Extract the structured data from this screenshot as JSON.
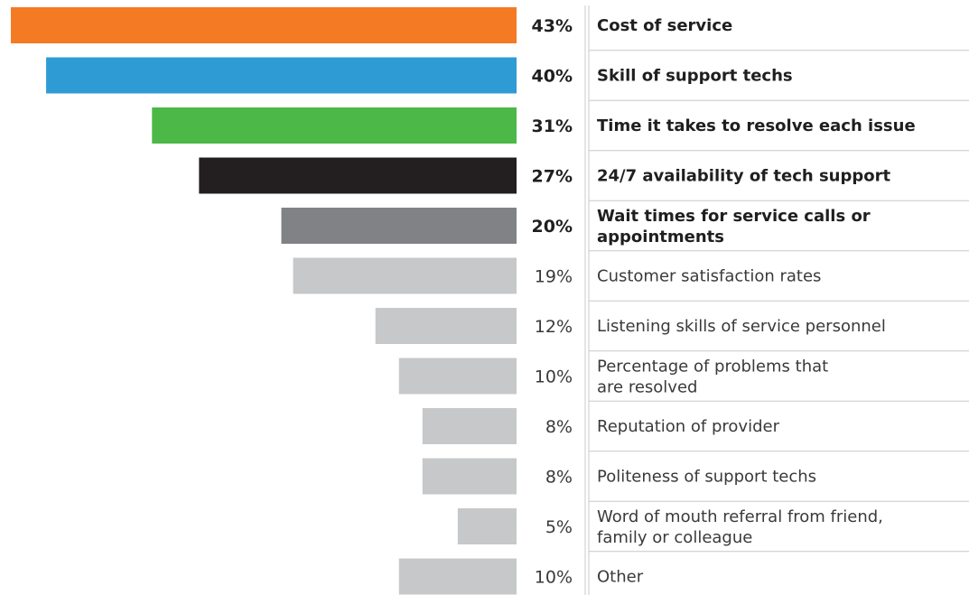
{
  "chart_data": {
    "type": "bar",
    "orientation": "horizontal",
    "xlim": [
      0,
      43
    ],
    "grid": false,
    "legend": "none",
    "categories": [
      [
        "Cost of service"
      ],
      [
        "Skill of support techs"
      ],
      [
        "Time it takes to resolve each issue"
      ],
      [
        "24/7 availability of tech support"
      ],
      [
        "Wait times for service calls or",
        "appointments"
      ],
      [
        "Customer satisfaction rates"
      ],
      [
        "Listening skills of service personnel"
      ],
      [
        "Percentage of problems that",
        "are resolved"
      ],
      [
        "Reputation of provider"
      ],
      [
        "Politeness of support techs"
      ],
      [
        "Word of mouth referral from friend,",
        "family or colleague"
      ],
      [
        "Other"
      ]
    ],
    "values": [
      43,
      40,
      31,
      27,
      20,
      19,
      12,
      10,
      8,
      8,
      5,
      10
    ],
    "value_labels": [
      "43%",
      "40%",
      "31%",
      "27%",
      "20%",
      "19%",
      "12%",
      "10%",
      "8%",
      "8%",
      "5%",
      "10%"
    ],
    "highlighted": [
      true,
      true,
      true,
      true,
      true,
      false,
      false,
      false,
      false,
      false,
      false,
      false
    ],
    "colors": [
      "#f47a23",
      "#2e9bd5",
      "#4cb848",
      "#231f20",
      "#808285",
      "#c7c8ca",
      "#c7c8ca",
      "#c7c8ca",
      "#c7c8ca",
      "#c7c8ca",
      "#c7c8ca",
      "#c7c8ca"
    ],
    "separator_color": "#c8c8c8"
  }
}
